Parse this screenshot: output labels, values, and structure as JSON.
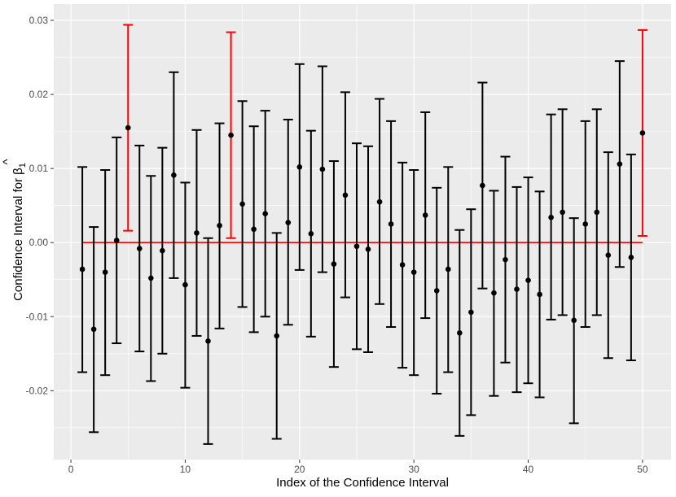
{
  "chart_data": {
    "type": "errorbar",
    "xlabel": "Index of the Confidence Interval",
    "ylabel_prefix": "Confidence Interval for ",
    "ylabel_symbol": "β",
    "ylabel_hat": "^",
    "ylabel_subscript": "1",
    "xlim": [
      -1.5,
      52.5
    ],
    "ylim": [
      -0.0293,
      0.0322
    ],
    "x_ticks": [
      0,
      10,
      20,
      30,
      40,
      50
    ],
    "x_tick_labels": [
      "0",
      "10",
      "20",
      "30",
      "40",
      "50"
    ],
    "y_ticks": [
      -0.02,
      -0.01,
      0.0,
      0.01,
      0.02,
      0.03
    ],
    "y_tick_labels": [
      "-0.02",
      "-0.01",
      "0.00",
      "0.01",
      "0.02",
      "0.03"
    ],
    "reference_line": {
      "y": 0.0,
      "x_start": 1,
      "x_end": 50,
      "color": "#ff0000"
    },
    "colors": {
      "panel": "#ebebeb",
      "grid": "#ffffff",
      "covers_zero": "#000000",
      "misses_zero": "#ff0000"
    },
    "intervals": [
      {
        "index": 1,
        "estimate": -0.0036,
        "lower": -0.0175,
        "upper": 0.0102
      },
      {
        "index": 2,
        "estimate": -0.0117,
        "lower": -0.0256,
        "upper": 0.0021
      },
      {
        "index": 3,
        "estimate": -0.004,
        "lower": -0.0179,
        "upper": 0.0098
      },
      {
        "index": 4,
        "estimate": 0.0003,
        "lower": -0.0136,
        "upper": 0.0142
      },
      {
        "index": 5,
        "estimate": 0.0155,
        "lower": 0.0016,
        "upper": 0.0294
      },
      {
        "index": 6,
        "estimate": -0.0008,
        "lower": -0.0147,
        "upper": 0.0131
      },
      {
        "index": 7,
        "estimate": -0.0048,
        "lower": -0.0187,
        "upper": 0.009
      },
      {
        "index": 8,
        "estimate": -0.0011,
        "lower": -0.015,
        "upper": 0.0128
      },
      {
        "index": 9,
        "estimate": 0.0091,
        "lower": -0.0048,
        "upper": 0.023
      },
      {
        "index": 10,
        "estimate": -0.0057,
        "lower": -0.0196,
        "upper": 0.0081
      },
      {
        "index": 11,
        "estimate": 0.0013,
        "lower": -0.0126,
        "upper": 0.0152
      },
      {
        "index": 12,
        "estimate": -0.0133,
        "lower": -0.0272,
        "upper": 0.0006
      },
      {
        "index": 13,
        "estimate": 0.0023,
        "lower": -0.0116,
        "upper": 0.0161
      },
      {
        "index": 14,
        "estimate": 0.0145,
        "lower": 0.0006,
        "upper": 0.0284
      },
      {
        "index": 15,
        "estimate": 0.0052,
        "lower": -0.0087,
        "upper": 0.0191
      },
      {
        "index": 16,
        "estimate": 0.0018,
        "lower": -0.0121,
        "upper": 0.0157
      },
      {
        "index": 17,
        "estimate": 0.0039,
        "lower": -0.01,
        "upper": 0.0178
      },
      {
        "index": 18,
        "estimate": -0.0126,
        "lower": -0.0265,
        "upper": 0.0013
      },
      {
        "index": 19,
        "estimate": 0.0027,
        "lower": -0.0111,
        "upper": 0.0166
      },
      {
        "index": 20,
        "estimate": 0.0102,
        "lower": -0.0037,
        "upper": 0.0241
      },
      {
        "index": 21,
        "estimate": 0.0012,
        "lower": -0.0127,
        "upper": 0.0151
      },
      {
        "index": 22,
        "estimate": 0.0099,
        "lower": -0.004,
        "upper": 0.0238
      },
      {
        "index": 23,
        "estimate": -0.0029,
        "lower": -0.0168,
        "upper": 0.011
      },
      {
        "index": 24,
        "estimate": 0.0064,
        "lower": -0.0074,
        "upper": 0.0203
      },
      {
        "index": 25,
        "estimate": -0.0005,
        "lower": -0.0144,
        "upper": 0.0134
      },
      {
        "index": 26,
        "estimate": -0.0009,
        "lower": -0.0148,
        "upper": 0.013
      },
      {
        "index": 27,
        "estimate": 0.0055,
        "lower": -0.0083,
        "upper": 0.0194
      },
      {
        "index": 28,
        "estimate": 0.0025,
        "lower": -0.0114,
        "upper": 0.0164
      },
      {
        "index": 29,
        "estimate": -0.003,
        "lower": -0.0169,
        "upper": 0.0108
      },
      {
        "index": 30,
        "estimate": -0.004,
        "lower": -0.0179,
        "upper": 0.0098
      },
      {
        "index": 31,
        "estimate": 0.0037,
        "lower": -0.0102,
        "upper": 0.0176
      },
      {
        "index": 32,
        "estimate": -0.0065,
        "lower": -0.0204,
        "upper": 0.0074
      },
      {
        "index": 33,
        "estimate": -0.0036,
        "lower": -0.0175,
        "upper": 0.0102
      },
      {
        "index": 34,
        "estimate": -0.0122,
        "lower": -0.0261,
        "upper": 0.0017
      },
      {
        "index": 35,
        "estimate": -0.0094,
        "lower": -0.0233,
        "upper": 0.0045
      },
      {
        "index": 36,
        "estimate": 0.0077,
        "lower": -0.0062,
        "upper": 0.0216
      },
      {
        "index": 37,
        "estimate": -0.0068,
        "lower": -0.0207,
        "upper": 0.007
      },
      {
        "index": 38,
        "estimate": -0.0023,
        "lower": -0.0162,
        "upper": 0.0116
      },
      {
        "index": 39,
        "estimate": -0.0063,
        "lower": -0.0202,
        "upper": 0.0075
      },
      {
        "index": 40,
        "estimate": -0.0051,
        "lower": -0.019,
        "upper": 0.0088
      },
      {
        "index": 41,
        "estimate": -0.007,
        "lower": -0.0209,
        "upper": 0.0069
      },
      {
        "index": 42,
        "estimate": 0.0034,
        "lower": -0.0104,
        "upper": 0.0173
      },
      {
        "index": 43,
        "estimate": 0.0041,
        "lower": -0.0098,
        "upper": 0.018
      },
      {
        "index": 44,
        "estimate": -0.0105,
        "lower": -0.0244,
        "upper": 0.0033
      },
      {
        "index": 45,
        "estimate": 0.0025,
        "lower": -0.0114,
        "upper": 0.0164
      },
      {
        "index": 46,
        "estimate": 0.0041,
        "lower": -0.0098,
        "upper": 0.018
      },
      {
        "index": 47,
        "estimate": -0.0017,
        "lower": -0.0156,
        "upper": 0.0122
      },
      {
        "index": 48,
        "estimate": 0.0106,
        "lower": -0.0033,
        "upper": 0.0245
      },
      {
        "index": 49,
        "estimate": -0.002,
        "lower": -0.0159,
        "upper": 0.0119
      },
      {
        "index": 50,
        "estimate": 0.0148,
        "lower": 0.0009,
        "upper": 0.0287
      }
    ]
  }
}
